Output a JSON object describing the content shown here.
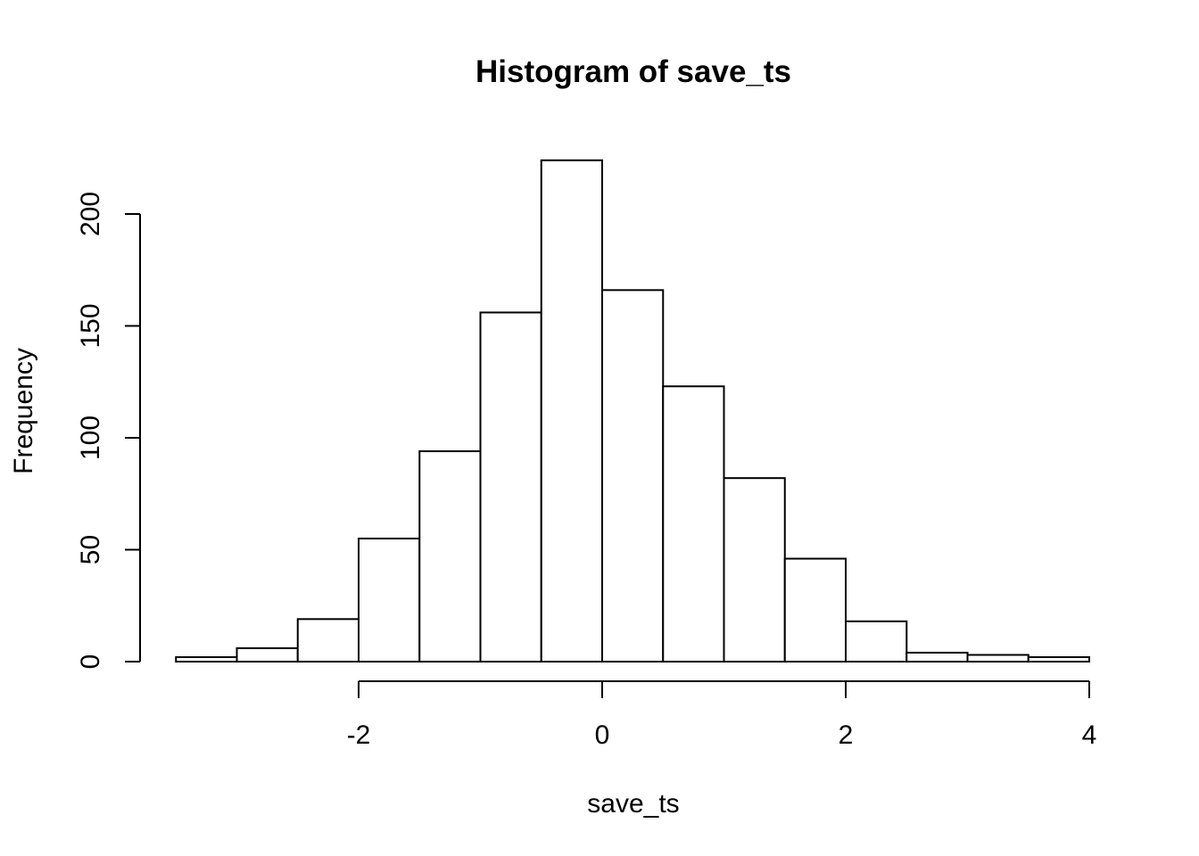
{
  "chart_data": {
    "type": "bar",
    "title": "Histogram of save_ts",
    "xlabel": "save_ts",
    "ylabel": "Frequency",
    "bin_edges": [
      -3.5,
      -3,
      -2.5,
      -2,
      -1.5,
      -1,
      -0.5,
      0,
      0.5,
      1,
      1.5,
      2,
      2.5,
      3,
      3.5,
      4
    ],
    "values": [
      2,
      6,
      19,
      55,
      94,
      156,
      224,
      166,
      123,
      82,
      46,
      18,
      4,
      3,
      2
    ],
    "x_ticks": [
      -2,
      0,
      2,
      4
    ],
    "x_tick_labels": [
      "-2",
      "0",
      "2",
      "4"
    ],
    "y_ticks": [
      0,
      50,
      100,
      150,
      200
    ],
    "y_tick_labels": [
      "0",
      "50",
      "100",
      "150",
      "200"
    ],
    "xlim": [
      -3.5,
      4
    ],
    "ylim": [
      0,
      224
    ],
    "grid": false,
    "bar_fill": "#ffffff",
    "bar_stroke": "#000000"
  }
}
